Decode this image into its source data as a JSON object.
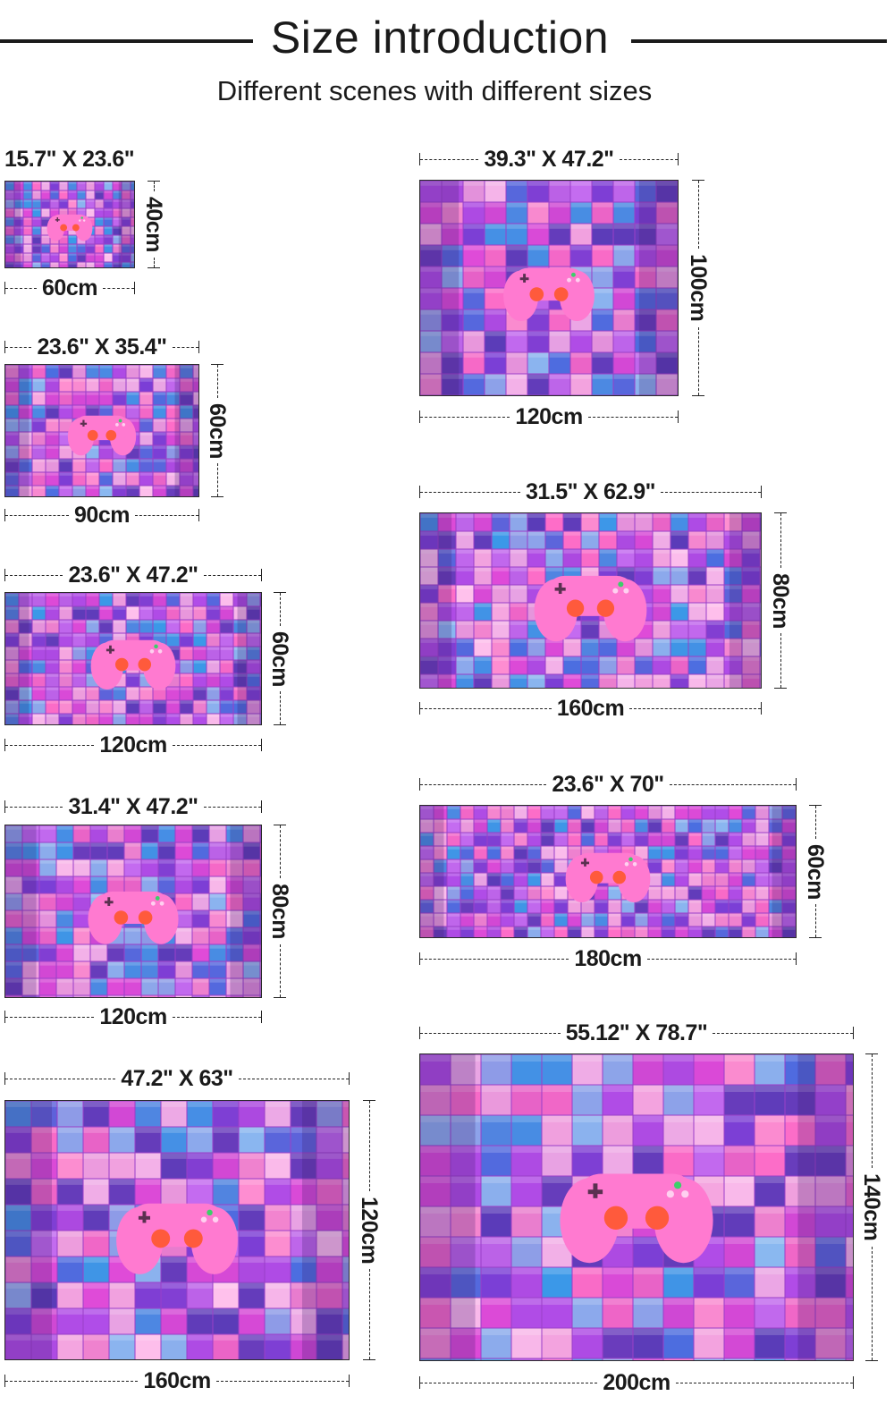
{
  "header": {
    "title": "Size introduction",
    "subtitle": "Different scenes with different sizes"
  },
  "theme": {
    "tile_colors": [
      "#ff6ec7",
      "#e04bd8",
      "#b14de8",
      "#7a3fd6",
      "#4a6fe0",
      "#3a9ae8",
      "#f7a8e0",
      "#ffc1ec",
      "#c46cf0",
      "#5a3cb8",
      "#ff8fd0",
      "#8ab8f0"
    ],
    "controller_color": "#ff7ad0",
    "button_color": "#ff5a3c"
  },
  "sizes": [
    {
      "inches": "15.7\" X 23.6\"",
      "width_label": "60cm",
      "height_label": "40cm"
    },
    {
      "inches": "23.6\" X 35.4\"",
      "width_label": "90cm",
      "height_label": "60cm"
    },
    {
      "inches": "23.6\" X 47.2\"",
      "width_label": "120cm",
      "height_label": "60cm"
    },
    {
      "inches": "31.4\" X 47.2\"",
      "width_label": "120cm",
      "height_label": "80cm"
    },
    {
      "inches": "47.2\" X 63\"",
      "width_label": "160cm",
      "height_label": "120cm"
    },
    {
      "inches": "39.3\" X 47.2\"",
      "width_label": "120cm",
      "height_label": "100cm"
    },
    {
      "inches": "31.5\" X 62.9\"",
      "width_label": "160cm",
      "height_label": "80cm"
    },
    {
      "inches": "23.6\" X 70\"",
      "width_label": "180cm",
      "height_label": "60cm"
    },
    {
      "inches": "55.12\" X 78.7\"",
      "width_label": "200cm",
      "height_label": "140cm"
    }
  ]
}
